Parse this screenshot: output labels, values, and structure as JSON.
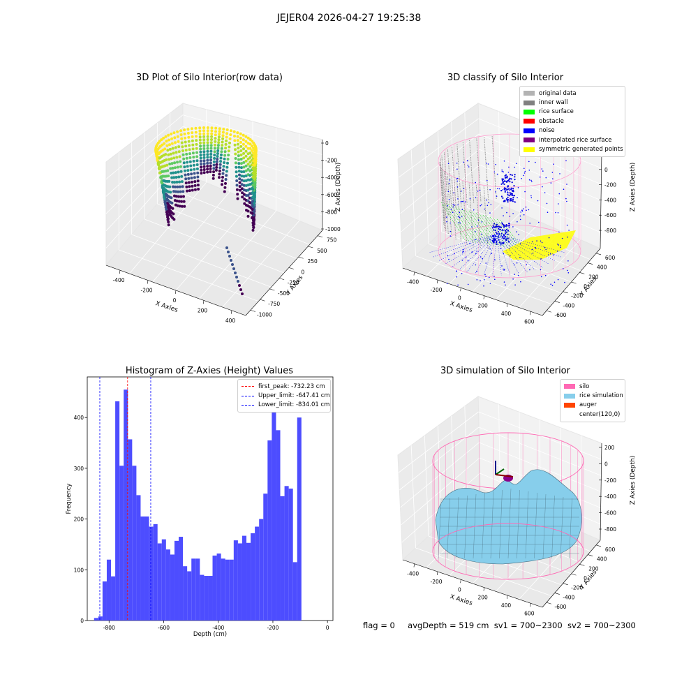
{
  "suptitle": "JEJER04 2026-04-27 19:25:38",
  "panel1": {
    "title": "3D Plot of Silo Interior(row data)",
    "xlabel": "X Axies",
    "ylabel": "Y Axies",
    "zlabel": "Z Axies (Depth)",
    "x_ticks": [
      "-400",
      "-200",
      "0",
      "200",
      "400"
    ],
    "y_ticks": [
      "750",
      "500",
      "250",
      "0",
      "-250",
      "-500",
      "-750",
      "-1000"
    ],
    "z_ticks": [
      "0",
      "-200",
      "-400",
      "-600",
      "-800",
      "-1000"
    ]
  },
  "panel2": {
    "title": "3D classify of Silo Interior",
    "xlabel": "X Axies",
    "ylabel": "Y Axies",
    "zlabel": "Z Axies (Depth)",
    "x_ticks": [
      "-400",
      "-200",
      "0",
      "200",
      "400",
      "600"
    ],
    "y_ticks": [
      "600",
      "400",
      "200",
      "0",
      "-200",
      "-400",
      "-600"
    ],
    "z_ticks": [
      "200",
      "0",
      "-200",
      "-400",
      "-600",
      "-800"
    ],
    "legend": [
      {
        "label": "original data",
        "color": "#b3b3b3"
      },
      {
        "label": "inner wall",
        "color": "#808080"
      },
      {
        "label": "rice surface",
        "color": "#00ff00"
      },
      {
        "label": "obstacle",
        "color": "#ff0000"
      },
      {
        "label": "noise",
        "color": "#0000ff"
      },
      {
        "label": "interpolated rice surface",
        "color": "#800080"
      },
      {
        "label": "symmetric generated points",
        "color": "#ffff00"
      }
    ]
  },
  "panel3": {
    "title": "Histogram of Z-Axies (Height) Values",
    "xlabel": "Depth (cm)",
    "ylabel": "Frequency",
    "x_ticks": [
      "-800",
      "-600",
      "-400",
      "-200",
      "0"
    ],
    "y_ticks": [
      "0",
      "100",
      "200",
      "300",
      "400"
    ],
    "legend": [
      {
        "label": "first_peak: -732.23 cm",
        "color": "#ff0000"
      },
      {
        "label": "Upper_limit: -647.41 cm",
        "color": "#0000ff"
      },
      {
        "label": "Lower_limit: -834.01 cm",
        "color": "#0000ff"
      }
    ]
  },
  "panel4": {
    "title": "3D simulation of Silo Interior",
    "xlabel": "X Axies",
    "ylabel": "Y Axies",
    "zlabel": "Z Axies (Depth)",
    "x_ticks": [
      "-400",
      "-200",
      "0",
      "200",
      "400",
      "600"
    ],
    "y_ticks": [
      "600",
      "400",
      "200",
      "0",
      "-200",
      "-400",
      "-600"
    ],
    "z_ticks": [
      "200",
      "0",
      "-200",
      "-400",
      "-600",
      "-800"
    ],
    "legend": [
      {
        "label": "silo",
        "color": "#ff69b4"
      },
      {
        "label": "rice simulation",
        "color": "#87ceeb"
      },
      {
        "label": "auger",
        "color": "#ff4500"
      },
      {
        "label": "center(120,0)",
        "color": ""
      }
    ]
  },
  "status": {
    "flag": "flag = 0",
    "avg": "avgDepth = 519 cm",
    "sv1": "sv1 = 700~2300",
    "sv2": "sv2 = 700~2300"
  },
  "chart_data": [
    {
      "type": "scatter",
      "title": "3D Plot of Silo Interior(row data)",
      "xlabel": "X Axies",
      "ylabel": "Y Axies",
      "zlabel": "Z Axies (Depth)",
      "xlim": [
        -450,
        450
      ],
      "ylim": [
        -1000,
        800
      ],
      "zlim": [
        -1050,
        50
      ],
      "colormap": "viridis",
      "description_of_marks": "radial depth scan columns along silo wall"
    },
    {
      "type": "scatter",
      "title": "3D classify of Silo Interior",
      "xlabel": "X Axies",
      "ylabel": "Y Axies",
      "zlabel": "Z Axies (Depth)",
      "xlim": [
        -450,
        650
      ],
      "ylim": [
        -600,
        600
      ],
      "zlim": [
        -850,
        250
      ],
      "series": [
        {
          "name": "original data"
        },
        {
          "name": "inner wall"
        },
        {
          "name": "rice surface"
        },
        {
          "name": "obstacle"
        },
        {
          "name": "noise"
        },
        {
          "name": "interpolated rice surface"
        },
        {
          "name": "symmetric generated points"
        }
      ]
    },
    {
      "type": "bar",
      "title": "Histogram of Z-Axies (Height) Values",
      "xlabel": "Depth (cm)",
      "ylabel": "Frequency",
      "xlim": [
        -880,
        20
      ],
      "ylim": [
        0,
        480
      ],
      "bin_width": 15.5,
      "bin_start": -855,
      "values": [
        5,
        8,
        77,
        120,
        87,
        432,
        305,
        455,
        357,
        305,
        247,
        205,
        205,
        185,
        190,
        152,
        160,
        140,
        130,
        157,
        165,
        107,
        97,
        122,
        122,
        90,
        88,
        88,
        128,
        132,
        122,
        120,
        120,
        158,
        152,
        167,
        153,
        172,
        185,
        200,
        250,
        355,
        415,
        375,
        245,
        265,
        260,
        115,
        400
      ],
      "vlines": [
        {
          "name": "first_peak",
          "x": -732.23,
          "color": "#ff0000"
        },
        {
          "name": "Upper_limit",
          "x": -647.41,
          "color": "#0000ff"
        },
        {
          "name": "Lower_limit",
          "x": -834.01,
          "color": "#0000ff"
        }
      ]
    },
    {
      "type": "area",
      "title": "3D simulation of Silo Interior",
      "xlabel": "X Axies",
      "ylabel": "Y Axies",
      "zlabel": "Z Axies (Depth)",
      "xlim": [
        -450,
        650
      ],
      "ylim": [
        -600,
        600
      ],
      "zlim": [
        -850,
        250
      ],
      "series": [
        {
          "name": "silo"
        },
        {
          "name": "rice simulation"
        },
        {
          "name": "auger"
        },
        {
          "name": "center(120,0)"
        }
      ]
    }
  ]
}
